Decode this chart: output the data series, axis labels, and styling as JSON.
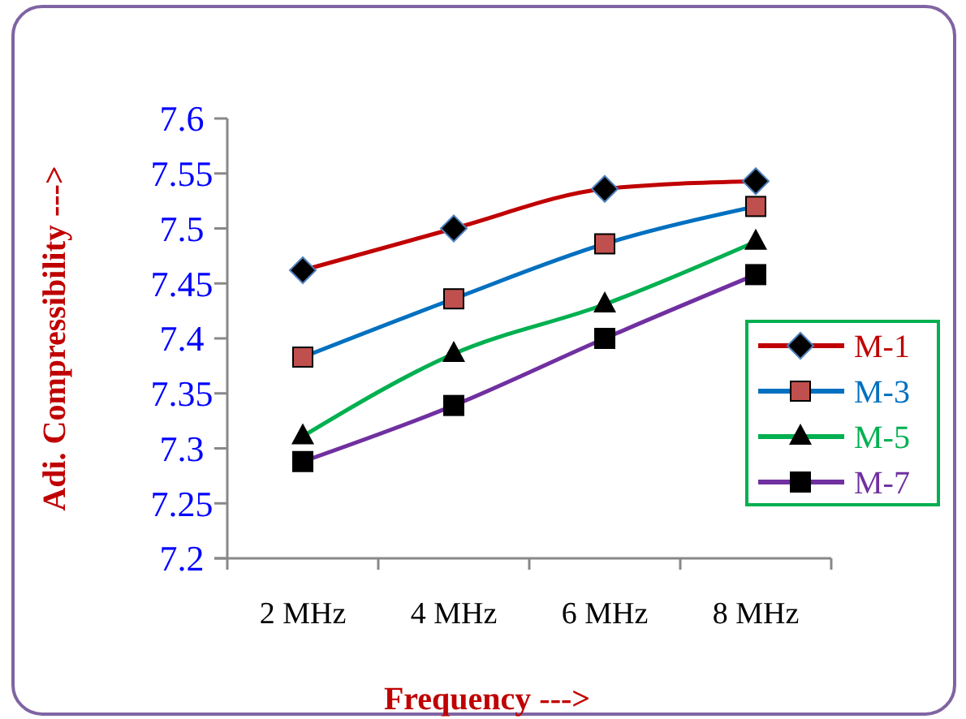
{
  "chart_data": {
    "type": "line",
    "xlabel": "Frequency --->",
    "ylabel": "Adi. Compressibility --->",
    "categories": [
      "2 MHz",
      "4 MHz",
      "6 MHz",
      "8 MHz"
    ],
    "series": [
      {
        "name": "M-1",
        "color": "#c00000",
        "marker": "diamond",
        "values": [
          7.462,
          7.5,
          7.536,
          7.543
        ]
      },
      {
        "name": "M-3",
        "color": "#0070c0",
        "marker": "square",
        "values": [
          7.383,
          7.436,
          7.486,
          7.52
        ]
      },
      {
        "name": "M-5",
        "color": "#00b050",
        "marker": "triangle",
        "values": [
          7.311,
          7.386,
          7.431,
          7.488
        ]
      },
      {
        "name": "M-7",
        "color": "#7030a0",
        "marker": "square",
        "values": [
          7.288,
          7.339,
          7.4,
          7.458
        ]
      }
    ],
    "ylim": [
      7.2,
      7.6
    ],
    "yticks": [
      7.2,
      7.25,
      7.3,
      7.35,
      7.4,
      7.45,
      7.5,
      7.55,
      7.6
    ],
    "grid": false,
    "legend": "right",
    "line_style": "solid"
  }
}
